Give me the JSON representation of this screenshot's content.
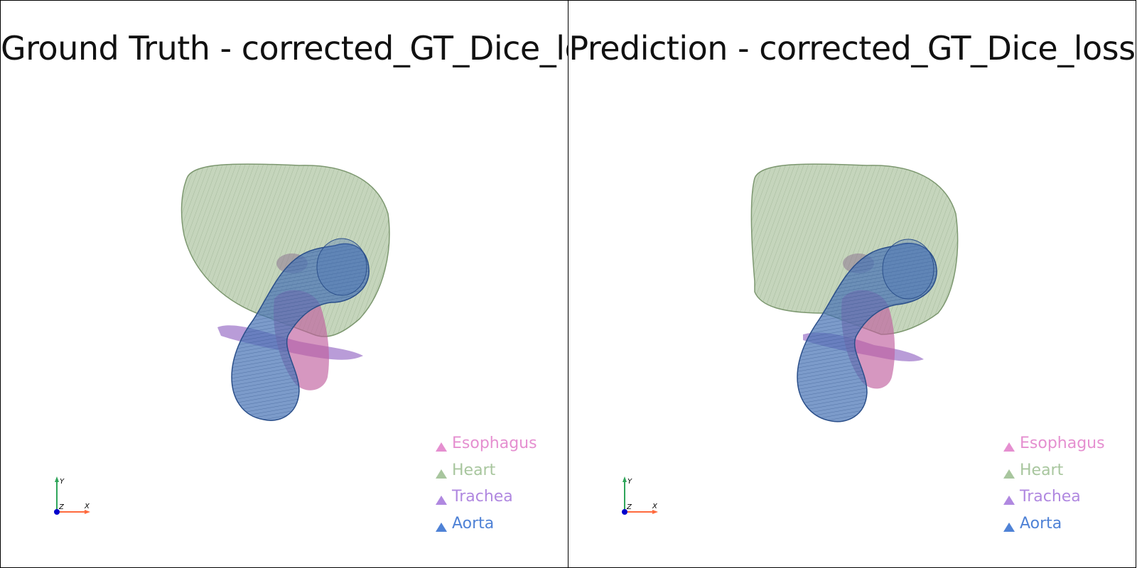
{
  "viewports": [
    {
      "title": "Ground Truth - corrected_GT_Dice_loss",
      "legend": [
        {
          "label": "Esophagus",
          "color": "#e58fd0"
        },
        {
          "label": "Heart",
          "color": "#a8c69e"
        },
        {
          "label": "Trachea",
          "color": "#b088e0"
        },
        {
          "label": "Aorta",
          "color": "#4f82d6"
        }
      ],
      "axes": {
        "x": "X",
        "y": "Y",
        "z": "Z"
      }
    },
    {
      "title": "Prediction - corrected_GT_Dice_loss",
      "legend": [
        {
          "label": "Esophagus",
          "color": "#e58fd0"
        },
        {
          "label": "Heart",
          "color": "#a8c69e"
        },
        {
          "label": "Trachea",
          "color": "#b088e0"
        },
        {
          "label": "Aorta",
          "color": "#4f82d6"
        }
      ],
      "axes": {
        "x": "X",
        "y": "Y",
        "z": "Z"
      }
    }
  ],
  "colors": {
    "heart": "#9fb98f",
    "aorta": "#4a74b5",
    "trachea": "#9b72c8",
    "esophagus": "#c0609e",
    "axis_x": "#ff6a3d",
    "axis_y": "#2fa55a",
    "axis_z": "#0000cc"
  }
}
